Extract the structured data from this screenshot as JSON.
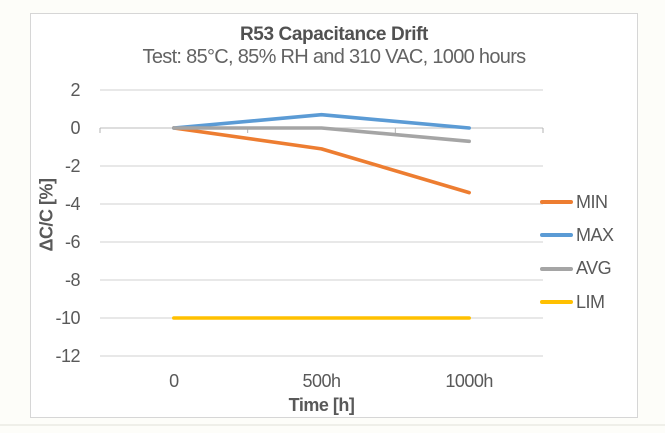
{
  "page": {
    "background": "#fdfdf9"
  },
  "chart_data": {
    "type": "line",
    "title": "R53 Capacitance Drift",
    "subtitle": "Test: 85°C, 85% RH and 310 VAC, 1000 hours",
    "xlabel": "Time [h]",
    "ylabel": "ΔC/C [%]",
    "categories": [
      "0",
      "500h",
      "1000h"
    ],
    "series": [
      {
        "name": "MIN",
        "color": "#ED7D31",
        "values": [
          0,
          -1.1,
          -3.4
        ]
      },
      {
        "name": "MAX",
        "color": "#5B9BD5",
        "values": [
          0,
          0.7,
          0
        ]
      },
      {
        "name": "AVG",
        "color": "#A5A5A5",
        "values": [
          0,
          0,
          -0.7
        ]
      },
      {
        "name": "LIM",
        "color": "#FFC000",
        "values": [
          -10,
          -10,
          -10
        ]
      }
    ],
    "y_ticks": [
      2,
      0,
      -2,
      -4,
      -6,
      -8,
      -10,
      -12
    ],
    "ylim": [
      -12,
      2
    ],
    "grid": true,
    "legend_position": "right",
    "colors": {
      "gridline": "#D9D9D9",
      "axis_line": "#C9C9C9",
      "tick_mark": "#B3B3B3",
      "text": "#595959",
      "title": "#515151"
    }
  }
}
